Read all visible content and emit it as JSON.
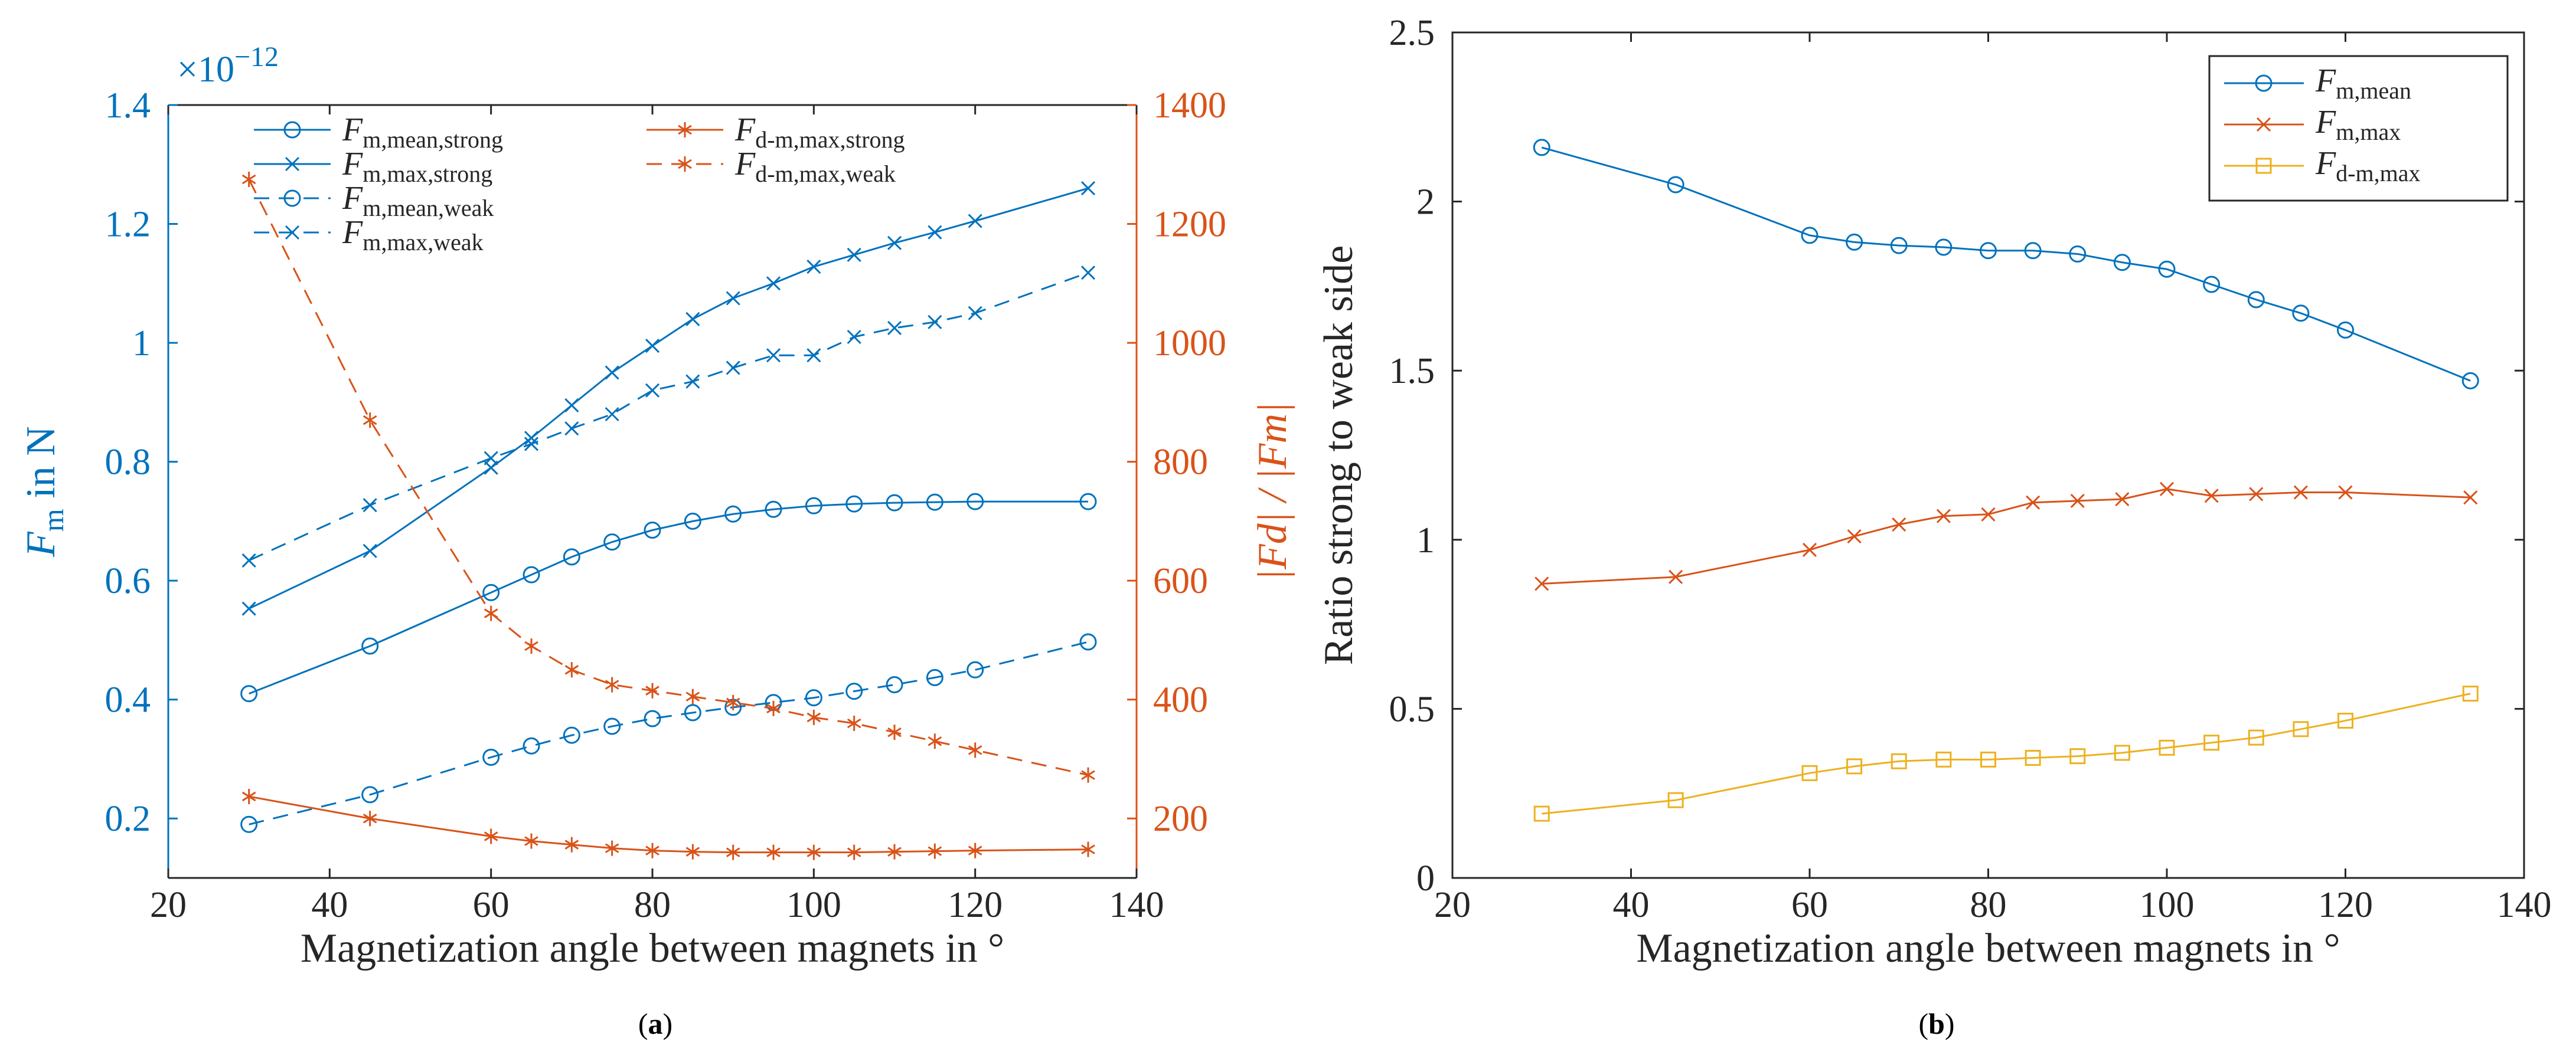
{
  "figure": {
    "panel_a_caption_pre": "(",
    "panel_a_caption_letter": "a",
    "panel_a_caption_post": ")",
    "panel_b_caption_pre": "(",
    "panel_b_caption_letter": "b",
    "panel_b_caption_post": ")"
  },
  "colors": {
    "blue": "#0072BD",
    "orange": "#D95319",
    "yellow": "#EDB120",
    "axis_black": "#262626"
  },
  "chart_data": [
    {
      "panel": "a",
      "type": "line",
      "xlabel": "Magnetization angle between magnets in °",
      "xlim": [
        20,
        140
      ],
      "xticks": [
        20,
        40,
        60,
        80,
        100,
        120,
        140
      ],
      "y_left": {
        "label_main": "F",
        "label_sub": "m",
        "label_rest": " in N",
        "lim": [
          0.1,
          1.4
        ],
        "ticks": [
          0.2,
          0.4,
          0.6,
          0.8,
          1,
          1.2,
          1.4
        ],
        "exponent_prefix": "×10",
        "exponent_power": "−12"
      },
      "y_right": {
        "label": "|Fd| / |Fm|",
        "lim": [
          100,
          1400
        ],
        "ticks": [
          200,
          400,
          600,
          800,
          1000,
          1200,
          1400
        ]
      },
      "grid": false,
      "legend_position": "top",
      "x": [
        30,
        45,
        60,
        65,
        70,
        75,
        80,
        85,
        90,
        95,
        100,
        105,
        110,
        115,
        120,
        134
      ],
      "series": [
        {
          "name_main": "F",
          "name_sub": "m,mean,strong",
          "axis": "left",
          "color": "blue",
          "marker": "circle",
          "dash": "solid",
          "values": [
            0.41,
            0.49,
            0.58,
            0.61,
            0.64,
            0.665,
            0.685,
            0.7,
            0.712,
            0.72,
            0.726,
            0.729,
            0.731,
            0.732,
            0.733,
            0.733
          ]
        },
        {
          "name_main": "F",
          "name_sub": "m,max,strong",
          "axis": "left",
          "color": "blue",
          "marker": "x",
          "dash": "solid",
          "values": [
            0.553,
            0.65,
            0.79,
            0.84,
            0.895,
            0.95,
            0.995,
            1.04,
            1.075,
            1.1,
            1.128,
            1.148,
            1.168,
            1.186,
            1.205,
            1.26
          ]
        },
        {
          "name_main": "F",
          "name_sub": "m,mean,weak",
          "axis": "left",
          "color": "blue",
          "marker": "circle",
          "dash": "dashed",
          "values": [
            0.19,
            0.24,
            0.303,
            0.322,
            0.34,
            0.355,
            0.368,
            0.378,
            0.387,
            0.395,
            0.403,
            0.414,
            0.425,
            0.437,
            0.45,
            0.497
          ]
        },
        {
          "name_main": "F",
          "name_sub": "m,max,weak",
          "axis": "left",
          "color": "blue",
          "marker": "x",
          "dash": "dashed",
          "values": [
            0.634,
            0.727,
            0.806,
            0.83,
            0.856,
            0.88,
            0.92,
            0.935,
            0.958,
            0.979,
            0.979,
            1.01,
            1.025,
            1.035,
            1.05,
            1.118
          ]
        },
        {
          "name_main": "F",
          "name_sub": "d-m,max,strong",
          "axis": "right",
          "color": "orange",
          "marker": "asterisk",
          "dash": "solid",
          "values": [
            237,
            200,
            170,
            162,
            156,
            150,
            146,
            144,
            143,
            143,
            143,
            143,
            144,
            145,
            146,
            148
          ]
        },
        {
          "name_main": "F",
          "name_sub": "d-m,max,weak",
          "axis": "right",
          "color": "orange",
          "marker": "asterisk",
          "dash": "dashed",
          "values": [
            1275,
            870,
            545,
            490,
            450,
            425,
            415,
            405,
            395,
            385,
            370,
            360,
            345,
            330,
            315,
            273
          ]
        }
      ]
    },
    {
      "panel": "b",
      "type": "line",
      "xlabel": "Magnetization angle between magnets in °",
      "ylabel": "Ratio strong to weak side",
      "xlim": [
        20,
        140
      ],
      "xticks": [
        20,
        40,
        60,
        80,
        100,
        120,
        140
      ],
      "ylim": [
        0,
        2.5
      ],
      "yticks": [
        0,
        0.5,
        1,
        1.5,
        2,
        2.5
      ],
      "grid": false,
      "legend_position": "top-right",
      "x": [
        30,
        45,
        60,
        65,
        70,
        75,
        80,
        85,
        90,
        95,
        100,
        105,
        110,
        115,
        120,
        134
      ],
      "series": [
        {
          "name_main": "F",
          "name_sub": "m,mean",
          "color": "blue",
          "marker": "circle",
          "values": [
            2.16,
            2.05,
            1.9,
            1.88,
            1.87,
            1.865,
            1.855,
            1.855,
            1.845,
            1.82,
            1.8,
            1.755,
            1.71,
            1.67,
            1.62,
            1.47
          ]
        },
        {
          "name_main": "F",
          "name_sub": "m,max",
          "color": "orange",
          "marker": "x",
          "values": [
            0.87,
            0.89,
            0.97,
            1.01,
            1.045,
            1.07,
            1.075,
            1.11,
            1.115,
            1.12,
            1.15,
            1.13,
            1.135,
            1.14,
            1.14,
            1.125
          ]
        },
        {
          "name_main": "F",
          "name_sub": "d-m,max",
          "color": "yellow",
          "marker": "square",
          "values": [
            0.19,
            0.23,
            0.31,
            0.33,
            0.345,
            0.35,
            0.35,
            0.355,
            0.36,
            0.37,
            0.385,
            0.4,
            0.415,
            0.44,
            0.465,
            0.545
          ]
        }
      ]
    }
  ]
}
